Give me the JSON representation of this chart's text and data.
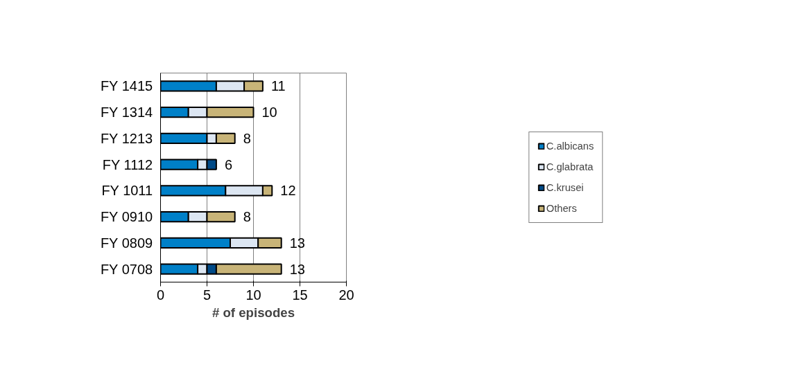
{
  "chart_data": {
    "type": "bar",
    "orientation": "horizontal",
    "stacked": true,
    "xlabel": "# of episodes",
    "categories": [
      "FY 1415",
      "FY 1314",
      "FY 1213",
      "FY 1112",
      "FY 1011",
      "FY 0910",
      "FY 0809",
      "FY 0708"
    ],
    "series": [
      {
        "name": "C.albicans",
        "color": "#0080c8",
        "values": [
          6,
          3,
          5,
          4,
          7,
          3,
          7.5,
          4
        ]
      },
      {
        "name": "C.glabrata",
        "color": "#dce6f2",
        "values": [
          3,
          2,
          1,
          1,
          4,
          2,
          3,
          1
        ]
      },
      {
        "name": "C.krusei",
        "color": "#004a87",
        "values": [
          0,
          0,
          0,
          1,
          0,
          0,
          0,
          1
        ]
      },
      {
        "name": "Others",
        "color": "#c8b478",
        "values": [
          2,
          5,
          2,
          0,
          1,
          3,
          2.5,
          7
        ]
      }
    ],
    "totals": [
      "11",
      "10",
      "8",
      "6",
      "12",
      "8",
      "13",
      "13"
    ],
    "xlim": [
      0,
      20
    ],
    "xticks": [
      0,
      5,
      10,
      15,
      20
    ],
    "grid": "x",
    "legend": "right"
  }
}
